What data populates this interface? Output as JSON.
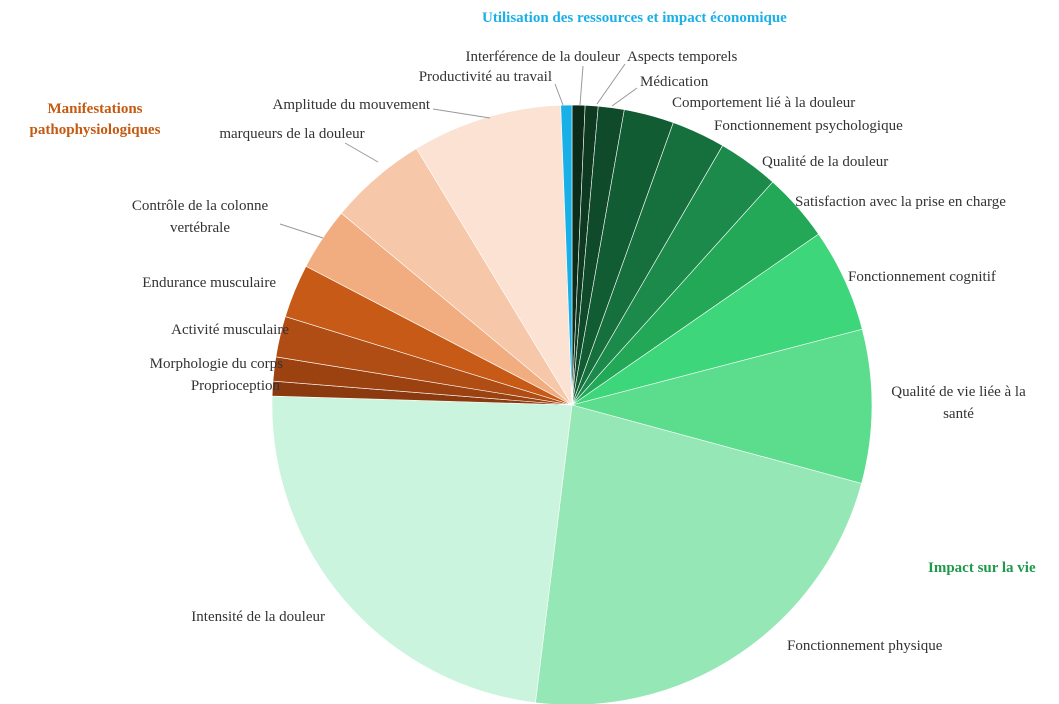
{
  "chart_data": {
    "type": "pie",
    "categories": [
      "Interférence de la douleur",
      "Aspects temporels",
      "Médication",
      "Comportement lié à la douleur",
      "Fonctionnement psychologique",
      "Qualité de la douleur",
      "Satisfaction avec la prise en charge",
      "Fonctionnement cognitif",
      "Qualité de vie liée à la santé",
      "Fonctionnement physique",
      "Intensité de la douleur",
      "Proprioception",
      "Morphologie du corps",
      "Activité musculaire",
      "Endurance musculaire",
      "Contrôle de la colonne vertébrale",
      "marqueurs de la douleur",
      "Amplitude du mouvement",
      "Productivité au travail"
    ],
    "values": [
      0.7,
      0.7,
      1.4,
      2.7,
      2.9,
      3.3,
      3.7,
      5.6,
      8.3,
      22.8,
      23.6,
      0.8,
      1.3,
      2.2,
      2.9,
      3.4,
      5.3,
      8.1,
      0.6
    ],
    "colors": [
      "#0a2c19",
      "#0d3a21",
      "#0f4a2a",
      "#115c33",
      "#16703d",
      "#1b8a4a",
      "#22a857",
      "#3dd67a",
      "#5cdd8d",
      "#95e8b6",
      "#caf4de",
      "#8b3a0f",
      "#9c4210",
      "#b04d14",
      "#c75a16",
      "#f1ad80",
      "#f6c7a8",
      "#fbe2d3",
      "#19b0e8"
    ],
    "group_labels": [
      {
        "text": "Utilisation des ressources et impact économique",
        "color": "#19b0e8"
      },
      {
        "text": "Manifestations pathophysiologiques",
        "color": "#c55a11"
      },
      {
        "text": "Impact sur la vie",
        "color": "#1f9a4c"
      }
    ]
  }
}
